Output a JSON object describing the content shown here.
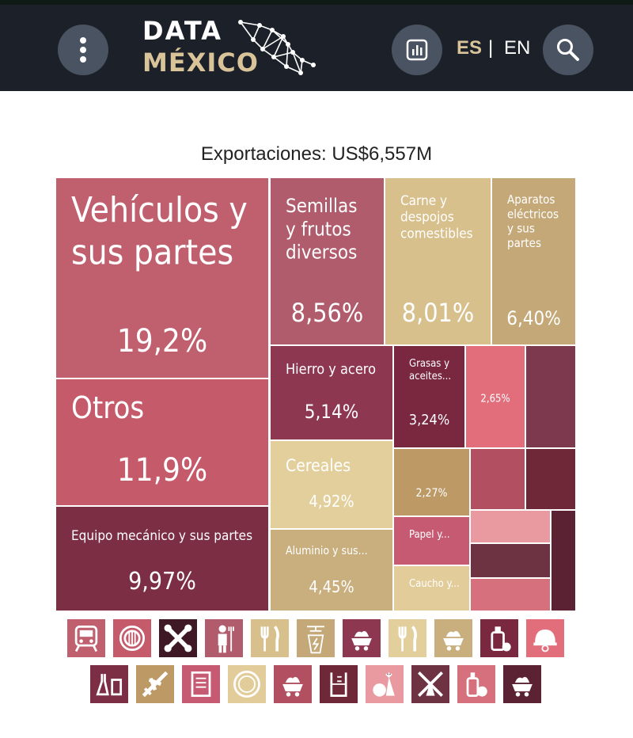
{
  "header": {
    "logo_line1": "DATA",
    "logo_line2": "MÉXICO",
    "lang_es": "ES",
    "lang_sep": "|",
    "lang_en": "EN"
  },
  "chart_data": {
    "type": "treemap",
    "title": "Exportaciones: US$6,557M",
    "cells": [
      {
        "label": "Vehículos y sus partes",
        "value": "19,2%",
        "color": "#c0606e"
      },
      {
        "label": "Otros",
        "value": "11,9%",
        "color": "#c55a6b"
      },
      {
        "label": "Equipo mecánico y sus partes",
        "value": "9,97%",
        "color": "#7c2e45"
      },
      {
        "label": "Semillas y frutos diversos",
        "value": "8,56%",
        "color": "#b05c6c"
      },
      {
        "label": "Carne y despojos comestibles",
        "value": "8,01%",
        "color": "#d8c08d"
      },
      {
        "label": "Aparatos eléctricos y sus partes",
        "value": "6,40%",
        "color": "#c4a878"
      },
      {
        "label": "Hierro y acero",
        "value": "5,14%",
        "color": "#8e3751"
      },
      {
        "label": "Cereales",
        "value": "4,92%",
        "color": "#e2cf9c"
      },
      {
        "label": "Aluminio y sus...",
        "value": "4,45%",
        "color": "#c9ae7e"
      },
      {
        "label": "Grasas y aceites...",
        "value": "3,24%",
        "color": "#7a2840"
      },
      {
        "label": "",
        "value": "2,65%",
        "color": "#e26e7b"
      },
      {
        "label": "",
        "value": "2,27%",
        "color": "#bc9965"
      },
      {
        "label": "Papel y...",
        "value": "",
        "color": "#c65a72"
      },
      {
        "label": "Caucho y...",
        "value": "",
        "color": "#e2cd9a"
      },
      {
        "label": "",
        "value": "",
        "color": "#7d3a4f"
      },
      {
        "label": "",
        "value": "",
        "color": "#b24f61"
      },
      {
        "label": "",
        "value": "",
        "color": "#6e2838"
      },
      {
        "label": "",
        "value": "",
        "color": "#e99aa0"
      },
      {
        "label": "",
        "value": "",
        "color": "#6e3343"
      },
      {
        "label": "",
        "value": "",
        "color": "#d5707c"
      },
      {
        "label": "",
        "value": "",
        "color": "#5a2232"
      }
    ]
  },
  "legend_icons": {
    "row1": [
      {
        "name": "train-icon",
        "color": "#c0606e"
      },
      {
        "name": "gear-wheel-icon",
        "color": "#c55a6b"
      },
      {
        "name": "tools-icon",
        "color": "#3e1825"
      },
      {
        "name": "farmer-icon",
        "color": "#b05c6c"
      },
      {
        "name": "fork-knife-icon",
        "color": "#d8c08d"
      },
      {
        "name": "electric-tower-icon",
        "color": "#c4a878"
      },
      {
        "name": "mining-cart-icon",
        "color": "#8e3751"
      },
      {
        "name": "fork-knife-icon",
        "color": "#e2cf9c"
      },
      {
        "name": "mining-cart-icon",
        "color": "#c9ae7e"
      },
      {
        "name": "oil-bottle-icon",
        "color": "#7a2840"
      },
      {
        "name": "helmet-icon",
        "color": "#e26e7b"
      }
    ],
    "row2": [
      {
        "name": "chemistry-icon",
        "color": "#7c2e45"
      },
      {
        "name": "airplane-icon",
        "color": "#bc9965"
      },
      {
        "name": "paper-icon",
        "color": "#c65a72"
      },
      {
        "name": "plate-icon",
        "color": "#e2cd9a"
      },
      {
        "name": "mining-cart-icon",
        "color": "#b24f61"
      },
      {
        "name": "beaker-icon",
        "color": "#6e2838"
      },
      {
        "name": "vegetables-icon",
        "color": "#e99aa0"
      },
      {
        "name": "windmill-icon",
        "color": "#6e3343"
      },
      {
        "name": "bottle-fruit-icon",
        "color": "#d5707c"
      },
      {
        "name": "mining-cart-icon",
        "color": "#5a2232"
      }
    ]
  }
}
